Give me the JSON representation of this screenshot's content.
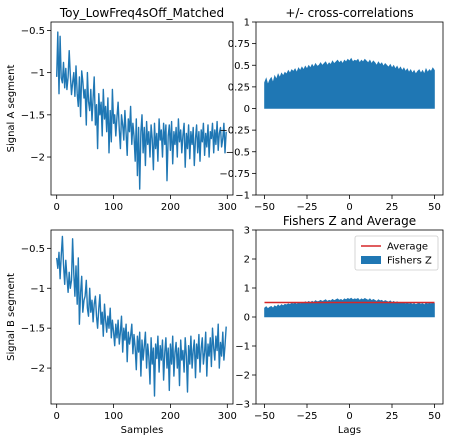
{
  "colors": {
    "series": "#1f77b4",
    "average": "#d62728",
    "axis": "#000000"
  },
  "chart_data": [
    {
      "type": "line",
      "title": "Toy_LowFreq4sOff_Matched",
      "xlabel": "",
      "ylabel": "Signal A segment",
      "xlim": [
        -10,
        310
      ],
      "ylim": [
        -2.45,
        -0.4
      ],
      "xticks": [
        0,
        100,
        200,
        300
      ],
      "yticks": [
        -0.5,
        -1.0,
        -1.5,
        -2.0
      ],
      "x_step": 2,
      "series": [
        {
          "values": [
            -1.05,
            -0.52,
            -1.25,
            -0.57,
            -1.06,
            -1.12,
            -0.88,
            -1.18,
            -0.95,
            -1.2,
            -1.05,
            -0.74,
            -1.02,
            -1.26,
            -1.12,
            -1.0,
            -1.28,
            -0.92,
            -1.25,
            -1.4,
            -1.05,
            -1.52,
            -0.98,
            -1.1,
            -1.3,
            -1.2,
            -1.62,
            -1.0,
            -1.34,
            -1.45,
            -1.2,
            -1.57,
            -1.3,
            -1.05,
            -1.62,
            -1.38,
            -1.9,
            -1.25,
            -1.5,
            -1.35,
            -1.75,
            -1.2,
            -1.55,
            -1.4,
            -1.7,
            -1.3,
            -1.95,
            -1.45,
            -1.82,
            -1.2,
            -1.6,
            -1.5,
            -1.75,
            -1.52,
            -1.35,
            -1.68,
            -1.9,
            -1.5,
            -1.62,
            -1.8,
            -1.45,
            -1.72,
            -1.98,
            -1.55,
            -1.7,
            -1.4,
            -1.85,
            -1.6,
            -1.75,
            -2.05,
            -1.55,
            -2.22,
            -1.65,
            -2.38,
            -1.7,
            -1.5,
            -1.95,
            -1.65,
            -2.1,
            -1.58,
            -1.85,
            -1.7,
            -2.0,
            -1.62,
            -1.78,
            -2.15,
            -1.6,
            -1.9,
            -1.72,
            -2.05,
            -1.55,
            -1.8,
            -1.68,
            -2.0,
            -1.6,
            -1.85,
            -1.62,
            -2.28,
            -1.75,
            -1.62,
            -1.92,
            -1.58,
            -2.08,
            -1.7,
            -1.85,
            -1.65,
            -2.0,
            -1.55,
            -1.82,
            -1.68,
            -1.95,
            -1.75,
            -1.6,
            -2.12,
            -1.72,
            -1.9,
            -1.62,
            -2.02,
            -1.7,
            -1.85,
            -1.65,
            -2.1,
            -1.78,
            -1.62,
            -1.95,
            -1.7,
            -2.05,
            -1.68,
            -1.82,
            -1.6,
            -1.98,
            -1.72,
            -1.88,
            -1.62,
            -2.0,
            -1.7,
            -1.78,
            -1.6,
            -1.95,
            -1.68,
            -1.85,
            -1.58,
            -1.92,
            -1.72,
            -1.65,
            -1.88,
            -1.78,
            -1.6,
            -1.95,
            -1.7
          ]
        }
      ]
    },
    {
      "type": "area",
      "title": "+/- cross-correlations",
      "xlabel": "",
      "ylabel": "",
      "xlim": [
        -55,
        55
      ],
      "ylim": [
        -1.0,
        1.0
      ],
      "xticks": [
        -50,
        -25,
        0,
        25,
        50
      ],
      "yticks": [
        1.0,
        0.75,
        0.5,
        0.25,
        0.0,
        -0.25,
        -0.5,
        -0.75,
        -1.0
      ],
      "x_start": -50,
      "series": [
        {
          "values": [
            0.3,
            0.35,
            0.28,
            0.33,
            0.36,
            0.3,
            0.38,
            0.34,
            0.4,
            0.36,
            0.41,
            0.38,
            0.42,
            0.4,
            0.44,
            0.41,
            0.45,
            0.43,
            0.46,
            0.42,
            0.47,
            0.44,
            0.48,
            0.45,
            0.49,
            0.46,
            0.5,
            0.47,
            0.51,
            0.48,
            0.52,
            0.49,
            0.5,
            0.53,
            0.5,
            0.52,
            0.54,
            0.5,
            0.53,
            0.51,
            0.55,
            0.52,
            0.54,
            0.56,
            0.53,
            0.55,
            0.52,
            0.56,
            0.54,
            0.57,
            0.55,
            0.58,
            0.54,
            0.56,
            0.55,
            0.57,
            0.53,
            0.56,
            0.54,
            0.57,
            0.55,
            0.53,
            0.56,
            0.52,
            0.55,
            0.53,
            0.5,
            0.54,
            0.51,
            0.53,
            0.49,
            0.52,
            0.5,
            0.48,
            0.51,
            0.47,
            0.5,
            0.46,
            0.49,
            0.45,
            0.48,
            0.44,
            0.47,
            0.43,
            0.46,
            0.42,
            0.45,
            0.41,
            0.44,
            0.4,
            0.43,
            0.45,
            0.41,
            0.44,
            0.4,
            0.46,
            0.42,
            0.45,
            0.43,
            0.47,
            0.44
          ]
        }
      ]
    },
    {
      "type": "line",
      "title": "",
      "xlabel": "Samples",
      "ylabel": "Signal B segment",
      "xlim": [
        -10,
        310
      ],
      "ylim": [
        -2.45,
        -0.27
      ],
      "xticks": [
        0,
        100,
        200,
        300
      ],
      "yticks": [
        -0.5,
        -1.0,
        -1.5,
        -2.0
      ],
      "x_step": 2,
      "series": [
        {
          "values": [
            -0.62,
            -0.75,
            -0.55,
            -0.88,
            -0.6,
            -0.35,
            -0.7,
            -0.95,
            -0.65,
            -0.85,
            -1.05,
            -0.8,
            -1.0,
            -0.9,
            -0.38,
            -0.82,
            -1.1,
            -0.72,
            -1.2,
            -0.62,
            -1.45,
            -1.05,
            -0.85,
            -1.3,
            -1.15,
            -1.1,
            -0.9,
            -1.25,
            -1.35,
            -1.0,
            -1.3,
            -1.15,
            -1.42,
            -1.2,
            -1.1,
            -1.35,
            -1.5,
            -1.25,
            -1.08,
            -1.45,
            -1.3,
            -1.6,
            -1.2,
            -1.4,
            -1.55,
            -1.35,
            -1.5,
            -1.25,
            -1.62,
            -1.4,
            -1.55,
            -1.72,
            -1.45,
            -1.62,
            -1.4,
            -1.7,
            -1.55,
            -1.35,
            -1.8,
            -1.5,
            -1.65,
            -1.45,
            -1.92,
            -1.55,
            -1.7,
            -1.6,
            -1.45,
            -1.82,
            -1.58,
            -1.75,
            -2.02,
            -1.6,
            -1.8,
            -1.55,
            -2.1,
            -1.65,
            -1.9,
            -1.72,
            -1.55,
            -2.0,
            -1.7,
            -1.85,
            -2.2,
            -1.62,
            -1.95,
            -1.75,
            -2.35,
            -1.7,
            -1.88,
            -1.6,
            -2.05,
            -1.72,
            -1.9,
            -1.65,
            -2.15,
            -1.8,
            -1.62,
            -2.0,
            -1.75,
            -2.28,
            -1.7,
            -1.95,
            -1.6,
            -2.1,
            -1.8,
            -1.68,
            -2.0,
            -1.75,
            -2.22,
            -1.65,
            -1.9,
            -1.78,
            -2.05,
            -1.62,
            -1.85,
            -2.3,
            -1.72,
            -1.95,
            -1.6,
            -2.0,
            -1.78,
            -1.65,
            -2.12,
            -1.7,
            -1.88,
            -1.58,
            -2.05,
            -1.75,
            -1.62,
            -1.95,
            -1.8,
            -1.55,
            -2.1,
            -1.7,
            -1.85,
            -1.62,
            -1.98,
            -1.5,
            -1.75,
            -1.9,
            -1.6,
            -1.78,
            -1.45,
            -2.0,
            -1.68,
            -1.85,
            -1.55,
            -1.9,
            -1.72,
            -1.48
          ]
        }
      ]
    },
    {
      "type": "area",
      "title": "Fishers Z and Average",
      "xlabel": "Lags",
      "ylabel": "",
      "xlim": [
        -55,
        55
      ],
      "ylim": [
        -3,
        3
      ],
      "xticks": [
        -50,
        -25,
        0,
        25,
        50
      ],
      "yticks": [
        3,
        2,
        1,
        0,
        -1,
        -2,
        -3
      ],
      "x_start": -50,
      "legend": {
        "position": "upper-right",
        "entries": [
          "Average",
          "Fishers Z"
        ]
      },
      "average": 0.5,
      "series": [
        {
          "name": "Fishers Z",
          "values": [
            0.31,
            0.36,
            0.29,
            0.34,
            0.37,
            0.31,
            0.39,
            0.35,
            0.42,
            0.37,
            0.43,
            0.39,
            0.44,
            0.42,
            0.46,
            0.43,
            0.48,
            0.45,
            0.49,
            0.44,
            0.5,
            0.46,
            0.51,
            0.48,
            0.53,
            0.49,
            0.54,
            0.5,
            0.55,
            0.51,
            0.57,
            0.53,
            0.54,
            0.58,
            0.54,
            0.57,
            0.6,
            0.54,
            0.58,
            0.56,
            0.61,
            0.57,
            0.6,
            0.63,
            0.58,
            0.61,
            0.57,
            0.63,
            0.6,
            0.64,
            0.61,
            0.65,
            0.6,
            0.63,
            0.61,
            0.64,
            0.58,
            0.63,
            0.6,
            0.64,
            0.61,
            0.58,
            0.63,
            0.57,
            0.61,
            0.58,
            0.54,
            0.6,
            0.56,
            0.58,
            0.53,
            0.57,
            0.54,
            0.52,
            0.56,
            0.5,
            0.54,
            0.49,
            0.53,
            0.48,
            0.51,
            0.47,
            0.5,
            0.46,
            0.49,
            0.45,
            0.48,
            0.44,
            0.47,
            0.43,
            0.46,
            0.48,
            0.44,
            0.47,
            0.42,
            0.49,
            0.45,
            0.48,
            0.46,
            0.51,
            0.47
          ]
        }
      ]
    }
  ]
}
